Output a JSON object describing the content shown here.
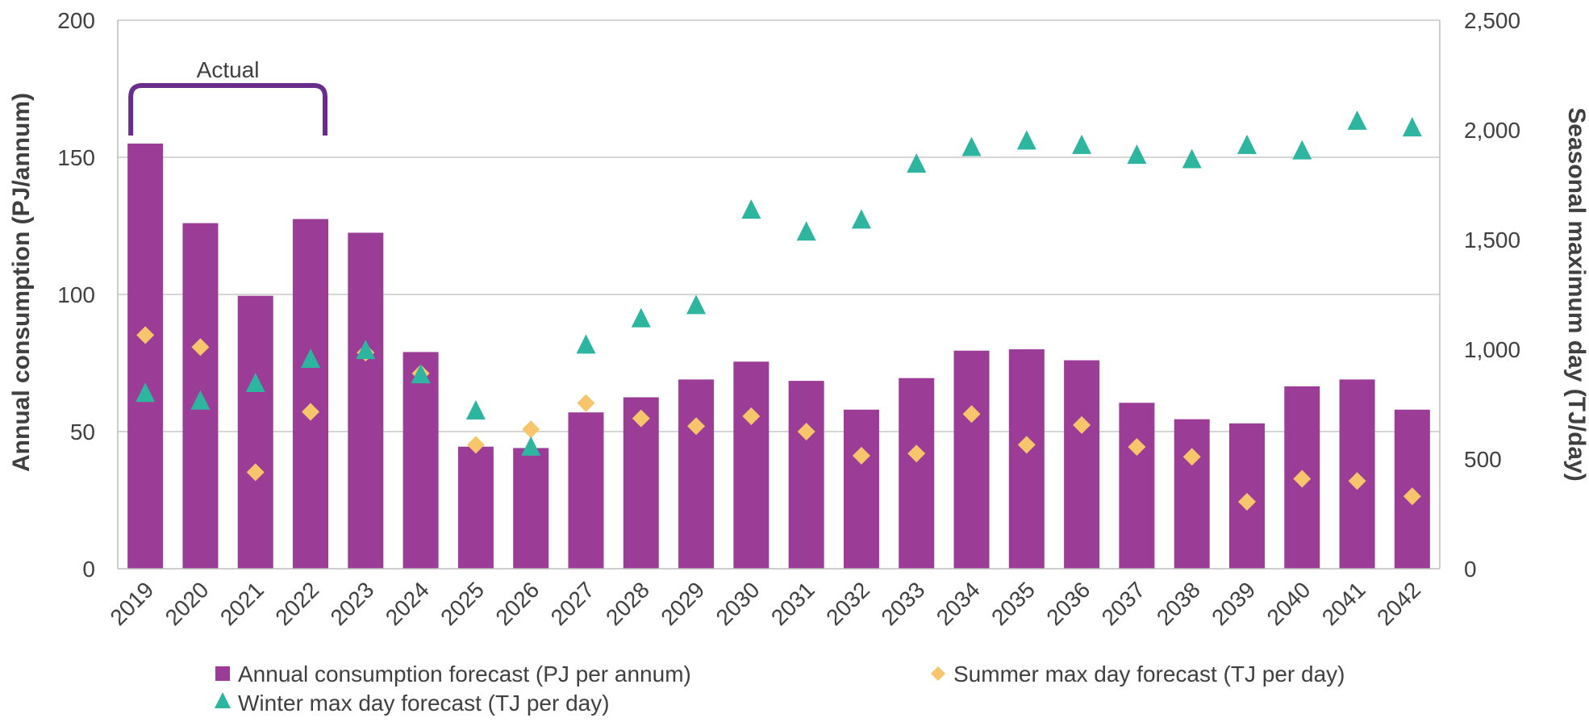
{
  "chart_data": {
    "type": "bar",
    "categories": [
      "2019",
      "2020",
      "2021",
      "2022",
      "2023",
      "2024",
      "2025",
      "2026",
      "2027",
      "2028",
      "2029",
      "2030",
      "2031",
      "2032",
      "2033",
      "2034",
      "2035",
      "2036",
      "2037",
      "2038",
      "2039",
      "2040",
      "2041",
      "2042"
    ],
    "series": [
      {
        "name": "Annual consumption forecast (PJ per annum)",
        "kind": "bar",
        "axis": "left",
        "marker": "square",
        "color": "#9b3d96",
        "values": [
          155,
          126,
          99.5,
          127.5,
          122.5,
          79,
          44.5,
          44,
          57,
          62.5,
          69,
          75.5,
          68.5,
          58,
          69.5,
          79.5,
          80,
          76,
          60.5,
          54.5,
          53,
          66.5,
          69,
          58
        ]
      },
      {
        "name": "Summer max day forecast (TJ per day)",
        "kind": "scatter",
        "axis": "right",
        "marker": "diamond",
        "color": "#f7c56b",
        "values": [
          1065,
          1010,
          440,
          715,
          985,
          890,
          565,
          635,
          755,
          685,
          650,
          695,
          625,
          515,
          525,
          705,
          565,
          655,
          555,
          510,
          305,
          410,
          400,
          330
        ]
      },
      {
        "name": "Winter max day forecast (TJ per day)",
        "kind": "scatter",
        "axis": "right",
        "marker": "triangle",
        "color": "#2db5a0",
        "values": [
          800,
          765,
          845,
          955,
          995,
          885,
          720,
          555,
          1020,
          1140,
          1200,
          1635,
          1535,
          1590,
          1845,
          1920,
          1950,
          1930,
          1885,
          1865,
          1930,
          1905,
          2040,
          2010
        ]
      }
    ],
    "y_left": {
      "label": "Annual consumption (PJ/annum)",
      "lim": [
        0,
        200
      ],
      "ticks": [
        0,
        50,
        100,
        150,
        200
      ],
      "tick_labels": [
        "0",
        "50",
        "100",
        "150",
        "200"
      ]
    },
    "y_right": {
      "label": "Seasonal maximum day (TJ/day)",
      "lim": [
        0,
        2500
      ],
      "ticks": [
        0,
        500,
        1000,
        1500,
        2000,
        2500
      ],
      "tick_labels": [
        "0",
        "500",
        "1,000",
        "1,500",
        "2,000",
        "2,500"
      ]
    },
    "grid": true,
    "legend_position": "bottom",
    "annotation": {
      "text": "Actual",
      "from_category": "2019",
      "to_category": "2022",
      "color": "#6a2c8a"
    },
    "gridline_color": "#c8c8c8"
  }
}
